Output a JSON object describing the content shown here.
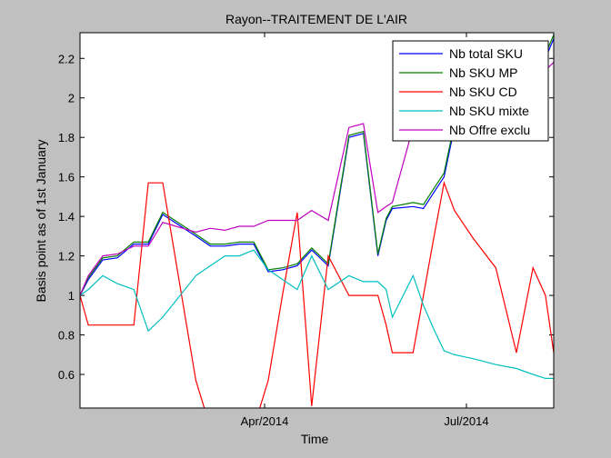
{
  "chart_data": {
    "type": "line",
    "title": "Rayon--TRAITEMENT DE L'AIR",
    "xlabel": "Time",
    "ylabel": "Basis point as of 1st January",
    "x_tick_labels": [
      "Apr/2014",
      "Jul/2014"
    ],
    "y_ticks": [
      0.6,
      0.8,
      1,
      1.2,
      1.4,
      1.6,
      1.8,
      2,
      2.2
    ],
    "y_tick_labels": [
      "0.6",
      "0.8",
      "1",
      "1.2",
      "1.4",
      "1.6",
      "1.8",
      "2",
      "2.2"
    ],
    "ylim": [
      0.43,
      2.33
    ],
    "grid": false,
    "legend_position": "top-right",
    "x": [
      "2014-01-01",
      "2014-01-05",
      "2014-01-12",
      "2014-01-19",
      "2014-01-27",
      "2014-02-03",
      "2014-02-10",
      "2014-02-26",
      "2014-03-05",
      "2014-03-12",
      "2014-03-19",
      "2014-03-26",
      "2014-04-02",
      "2014-04-09",
      "2014-04-16",
      "2014-04-23",
      "2014-05-01",
      "2014-05-11",
      "2014-05-18",
      "2014-05-25",
      "2014-05-29",
      "2014-06-01",
      "2014-06-11",
      "2014-06-16",
      "2014-06-21",
      "2014-06-26",
      "2014-07-01",
      "2014-07-10",
      "2014-07-21",
      "2014-07-31",
      "2014-08-08",
      "2014-08-14",
      "2014-08-18"
    ],
    "series": [
      {
        "name": "Nb total SKU",
        "color": "#0000ff",
        "values": [
          1.0,
          1.08,
          1.18,
          1.19,
          1.26,
          1.26,
          1.41,
          1.3,
          1.25,
          1.25,
          1.26,
          1.26,
          1.12,
          1.13,
          1.15,
          1.23,
          1.15,
          1.8,
          1.82,
          1.2,
          1.38,
          1.44,
          1.45,
          1.44,
          1.52,
          1.6,
          1.85,
          2.0,
          2.1,
          2.12,
          2.15,
          2.2,
          2.3
        ]
      },
      {
        "name": "Nb SKU MP",
        "color": "#008000",
        "values": [
          1.0,
          1.09,
          1.19,
          1.2,
          1.27,
          1.27,
          1.42,
          1.31,
          1.26,
          1.26,
          1.27,
          1.27,
          1.13,
          1.14,
          1.16,
          1.24,
          1.16,
          1.81,
          1.83,
          1.21,
          1.39,
          1.45,
          1.47,
          1.46,
          1.54,
          1.62,
          1.87,
          2.02,
          2.12,
          2.14,
          2.17,
          2.22,
          2.32
        ]
      },
      {
        "name": "Nb SKU CD",
        "color": "#ff0000",
        "values": [
          1.0,
          0.85,
          0.85,
          0.85,
          0.85,
          1.57,
          1.57,
          0.57,
          0.33,
          0.2,
          0.25,
          0.33,
          0.57,
          1.01,
          1.42,
          0.44,
          1.2,
          1.0,
          1.0,
          1.0,
          0.85,
          0.71,
          0.71,
          1.0,
          1.29,
          1.57,
          1.43,
          1.29,
          1.14,
          0.71,
          1.14,
          1.0,
          0.71
        ]
      },
      {
        "name": "Nb SKU mixte",
        "color": "#00bfbf",
        "values": [
          1.0,
          1.03,
          1.1,
          1.06,
          1.03,
          0.82,
          0.89,
          1.1,
          1.15,
          1.2,
          1.2,
          1.23,
          1.13,
          1.08,
          1.03,
          1.2,
          1.03,
          1.1,
          1.07,
          1.07,
          1.03,
          0.89,
          1.1,
          0.95,
          0.83,
          0.72,
          0.7,
          0.68,
          0.65,
          0.63,
          0.6,
          0.58,
          0.58
        ]
      },
      {
        "name": "Nb Offre exclu",
        "color": "#bf00bf",
        "values": [
          1.0,
          1.1,
          1.2,
          1.21,
          1.25,
          1.25,
          1.37,
          1.32,
          1.34,
          1.33,
          1.35,
          1.35,
          1.38,
          1.38,
          1.38,
          1.43,
          1.38,
          1.85,
          1.87,
          1.42,
          1.45,
          1.47,
          1.85,
          1.9,
          1.95,
          2.0,
          2.05,
          2.1,
          2.12,
          2.13,
          2.15,
          2.14,
          2.18
        ]
      }
    ]
  }
}
